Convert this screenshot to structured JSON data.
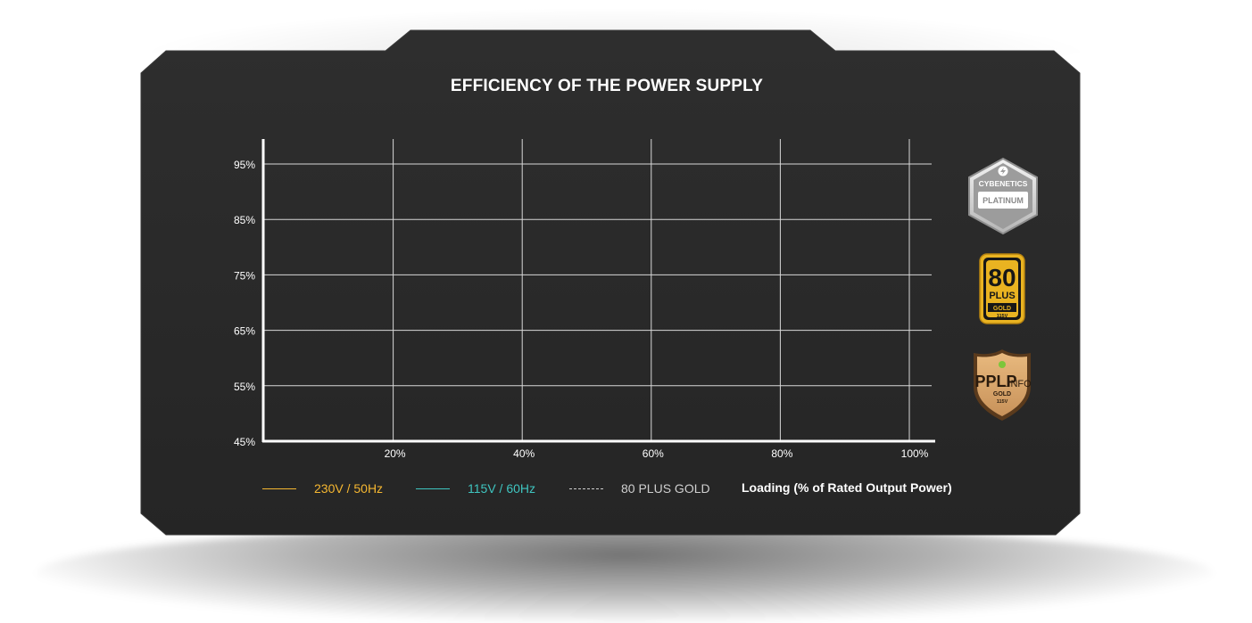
{
  "title": "EFFICIENCY OF THE POWER SUPPLY",
  "chart_data": {
    "type": "line",
    "title": "EFFICIENCY OF THE POWER SUPPLY",
    "xlabel": "Loading (% of Rated Output Power)",
    "ylabel": "",
    "x_ticks": [
      "20%",
      "40%",
      "60%",
      "80%",
      "100%"
    ],
    "y_ticks": [
      "95%",
      "85%",
      "75%",
      "65%",
      "55%",
      "45%"
    ],
    "xlim": [
      0,
      100
    ],
    "ylim": [
      45,
      100
    ],
    "grid": true,
    "legend_position": "bottom",
    "series": [
      {
        "name": "230V / 50Hz",
        "color": "#f5b731",
        "style": "solid",
        "values": []
      },
      {
        "name": "115V / 60Hz",
        "color": "#3fc5c0",
        "style": "solid",
        "values": []
      },
      {
        "name": "80 PLUS GOLD",
        "color": "#cfcfcf",
        "style": "dashed",
        "values": []
      }
    ]
  },
  "badges": {
    "cybenetics": {
      "line1": "CYBENETICS",
      "line2": "PLATINUM"
    },
    "plus80": {
      "number": "80",
      "plus": "PLUS",
      "tier": "GOLD",
      "voltage": "115V"
    },
    "pplp": {
      "brand": "PPLP",
      "suffix": ".INFO",
      "tier": "GOLD",
      "voltage": "115V"
    }
  },
  "colors": {
    "panel": "#2b2b2b",
    "accent_230v": "#f5b731",
    "accent_115v": "#3fc5c0",
    "gold": "#e9b321",
    "bronze": "#d7a46a"
  }
}
